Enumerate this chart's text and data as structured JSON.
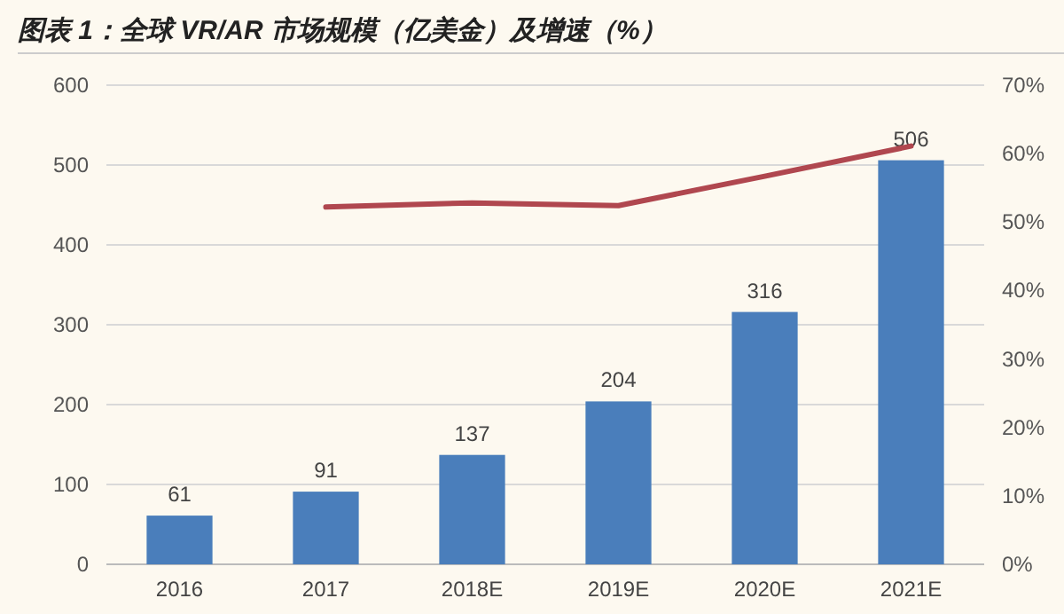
{
  "chart_data": {
    "type": "bar",
    "title": "图表 1：全球 VR/AR 市场规模（亿美金）及增速（%）",
    "categories": [
      "2016",
      "2017",
      "2018E",
      "2019E",
      "2020E",
      "2021E"
    ],
    "series": [
      {
        "color": "#4a7ebb",
        "values": [
          61,
          91,
          137,
          204,
          316,
          506
        ],
        "value_labels": [
          "61",
          "91",
          "137",
          "204",
          "316",
          "506"
        ]
      },
      {
        "type": "line",
        "axis": "y2",
        "color": "#b0474f",
        "values": [
          null,
          52.2,
          52.8,
          52.4,
          56.7,
          61.1
        ]
      }
    ],
    "ylim": [
      0,
      600
    ],
    "yticks": [
      0,
      100,
      200,
      300,
      400,
      500,
      600
    ],
    "y2lim": [
      0,
      70
    ],
    "y2ticks": [
      {
        "value": 0,
        "label": "0%"
      },
      {
        "value": 10,
        "label": "10%"
      },
      {
        "value": 20,
        "label": "20%"
      },
      {
        "value": 30,
        "label": "30%"
      },
      {
        "value": 40,
        "label": "40%"
      },
      {
        "value": 50,
        "label": "50%"
      },
      {
        "value": 60,
        "label": "60%"
      },
      {
        "value": 70,
        "label": "70%"
      }
    ],
    "grid": "y"
  }
}
